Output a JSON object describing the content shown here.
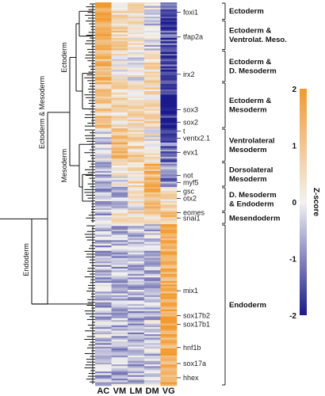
{
  "chart_data": {
    "type": "heatmap",
    "title": "",
    "columns": [
      "AC",
      "VM",
      "LM",
      "DM",
      "VG"
    ],
    "colorbar": {
      "label": "Z-score",
      "min": -2,
      "max": 2,
      "ticks": [
        "2",
        "1",
        "0",
        "-1",
        "-2"
      ],
      "low_color": "#1a1a8c",
      "mid_color": "#f2f2f2",
      "high_color": "#f29a2e"
    },
    "genes": [
      {
        "name": "foxi1",
        "row": 5
      },
      {
        "name": "tfap2a",
        "row": 19
      },
      {
        "name": "irx2",
        "row": 40
      },
      {
        "name": "sox3",
        "row": 60
      },
      {
        "name": "sox2",
        "row": 67
      },
      {
        "name": "t",
        "row": 72
      },
      {
        "name": "ventx2.1",
        "row": 76
      },
      {
        "name": "evx1",
        "row": 84
      },
      {
        "name": "not",
        "row": 97
      },
      {
        "name": "myf5",
        "row": 101
      },
      {
        "name": "gsc",
        "row": 106
      },
      {
        "name": "otx2",
        "row": 110
      },
      {
        "name": "eomes",
        "row": 118
      },
      {
        "name": "snai1",
        "row": 121
      },
      {
        "name": "mix1",
        "row": 162
      },
      {
        "name": "sox17b2",
        "row": 176
      },
      {
        "name": "sox17b1",
        "row": 181
      },
      {
        "name": "hnf1b",
        "row": 194
      },
      {
        "name": "sox17a",
        "row": 203
      },
      {
        "name": "hhex",
        "row": 211
      }
    ],
    "groups": [
      {
        "lines": [
          "Ectoderm"
        ],
        "start": 0,
        "end": 10
      },
      {
        "lines": [
          "Ectoderm &",
          "Ventrolat. Meso."
        ],
        "start": 10,
        "end": 27
      },
      {
        "lines": [
          "Ectoderm &",
          "D. Mesoderm"
        ],
        "start": 27,
        "end": 45
      },
      {
        "lines": [
          "Ectoderm &",
          "Mesoderm"
        ],
        "start": 45,
        "end": 71
      },
      {
        "lines": [
          "Ventrolateral",
          "Mesoderm"
        ],
        "start": 71,
        "end": 90
      },
      {
        "lines": [
          "Dorsolateral",
          "Mesoderm"
        ],
        "start": 90,
        "end": 104
      },
      {
        "lines": [
          "D. Mesoderm",
          "& Endoderm"
        ],
        "start": 104,
        "end": 118
      },
      {
        "lines": [
          "Mesendoderm"
        ],
        "start": 118,
        "end": 125
      },
      {
        "lines": [
          "Endoderm"
        ],
        "start": 125,
        "end": 216
      }
    ],
    "segments": [
      {
        "start": 0,
        "end": 10,
        "values": [
          1.8,
          0.4,
          0.4,
          -0.3,
          -1.4
        ]
      },
      {
        "start": 10,
        "end": 27,
        "values": [
          1.5,
          0.7,
          0.3,
          -0.2,
          -1.5
        ]
      },
      {
        "start": 27,
        "end": 45,
        "values": [
          1.2,
          0.1,
          0.1,
          0.6,
          -1.6
        ]
      },
      {
        "start": 45,
        "end": 71,
        "values": [
          0.9,
          0.5,
          0.4,
          0.5,
          -1.9
        ]
      },
      {
        "start": 71,
        "end": 90,
        "values": [
          -0.3,
          1.2,
          0.7,
          0.2,
          -1.2
        ]
      },
      {
        "start": 90,
        "end": 104,
        "values": [
          -0.5,
          0.1,
          0.6,
          1.3,
          -0.9
        ]
      },
      {
        "start": 104,
        "end": 118,
        "values": [
          -0.6,
          -0.5,
          0.2,
          1.4,
          0.4
        ]
      },
      {
        "start": 118,
        "end": 125,
        "values": [
          -0.5,
          0.2,
          0.4,
          0.6,
          0.9
        ]
      },
      {
        "start": 125,
        "end": 216,
        "values": [
          -0.5,
          -0.5,
          -0.5,
          -0.4,
          1.6
        ]
      }
    ],
    "n_rows": 216,
    "dendrogram": {
      "top_labels": [
        {
          "text": "Ectoderm"
        },
        {
          "text": "Mesoderm"
        },
        {
          "text": "Ectoderm & Mesoderm"
        },
        {
          "text": "Endoderm"
        }
      ]
    }
  }
}
